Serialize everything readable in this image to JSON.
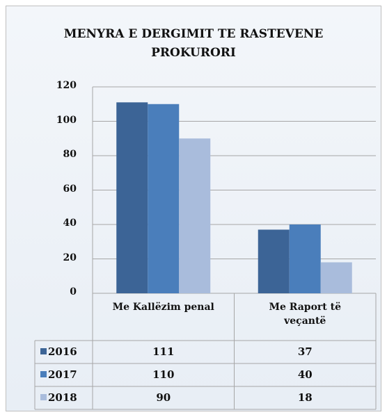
{
  "chart_data": {
    "type": "bar",
    "title": "MENYRA E DERGIMIT TE RASTEVENE PROKURORI",
    "categories": [
      "Me Kallëzim penal",
      "Me Raport të veçantë"
    ],
    "series": [
      {
        "name": "2016",
        "color": "#3c6496",
        "values": [
          111,
          37
        ]
      },
      {
        "name": "2017",
        "color": "#4a7ebb",
        "values": [
          110,
          40
        ]
      },
      {
        "name": "2018",
        "color": "#a9bcdc",
        "values": [
          90,
          18
        ]
      }
    ],
    "ylim": [
      0,
      120
    ],
    "yticks": [
      0,
      20,
      40,
      60,
      80,
      100,
      120
    ],
    "grid": true,
    "legend": "table"
  }
}
